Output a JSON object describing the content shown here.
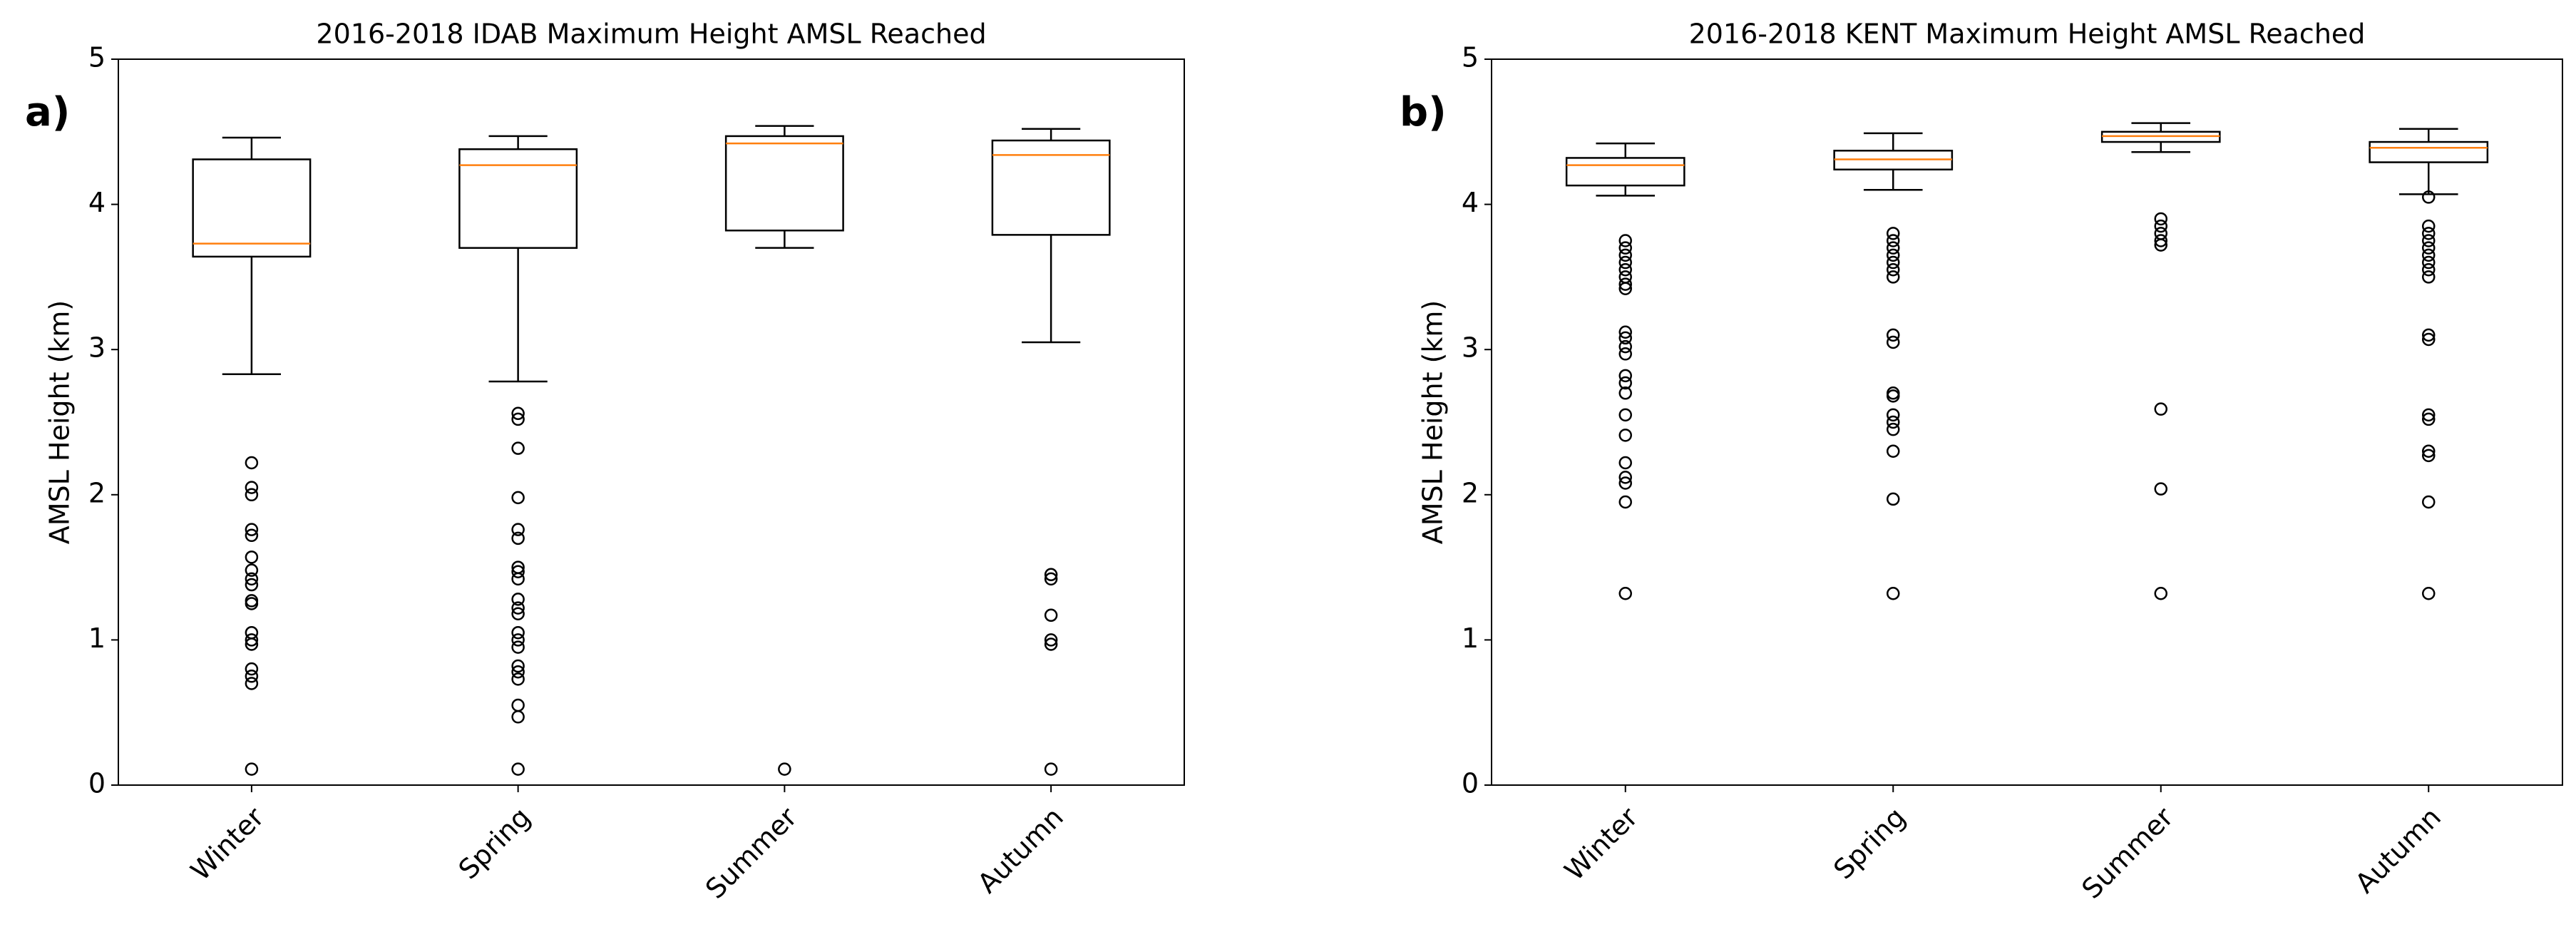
{
  "chart_data": [
    {
      "type": "box",
      "panel_label": "a)",
      "title": "2016-2018 IDAB Maximum Height AMSL Reached",
      "y_label": "AMSL Height (km)",
      "categories": [
        "Winter",
        "Spring",
        "Summer",
        "Autumn"
      ],
      "ylim": [
        0,
        5
      ],
      "yticks": [
        0,
        1,
        2,
        3,
        4,
        5
      ],
      "box_color": "#000000",
      "median_color": "#ff7f0e",
      "boxes": [
        {
          "whislo": 2.83,
          "q1": 3.64,
          "med": 3.73,
          "q3": 4.31,
          "whishi": 4.46,
          "fliers": [
            2.22,
            2.05,
            2.0,
            1.76,
            1.72,
            1.57,
            1.48,
            1.42,
            1.38,
            1.27,
            1.25,
            1.05,
            1.0,
            0.97,
            0.8,
            0.75,
            0.7,
            0.11
          ]
        },
        {
          "whislo": 2.78,
          "q1": 3.7,
          "med": 4.27,
          "q3": 4.38,
          "whishi": 4.47,
          "fliers": [
            2.56,
            2.52,
            2.32,
            1.98,
            1.76,
            1.7,
            1.5,
            1.47,
            1.42,
            1.28,
            1.22,
            1.18,
            1.05,
            1.0,
            0.95,
            0.82,
            0.78,
            0.73,
            0.55,
            0.47,
            0.11
          ]
        },
        {
          "whislo": 3.7,
          "q1": 3.82,
          "med": 4.42,
          "q3": 4.47,
          "whishi": 4.54,
          "fliers": [
            0.11
          ]
        },
        {
          "whislo": 3.05,
          "q1": 3.79,
          "med": 4.34,
          "q3": 4.44,
          "whishi": 4.52,
          "fliers": [
            1.45,
            1.42,
            1.17,
            1.0,
            0.97,
            0.11
          ]
        }
      ]
    },
    {
      "type": "box",
      "panel_label": "b)",
      "title": "2016-2018 KENT Maximum Height AMSL Reached",
      "y_label": "AMSL Height (km)",
      "categories": [
        "Winter",
        "Spring",
        "Summer",
        "Autumn"
      ],
      "ylim": [
        0,
        5
      ],
      "yticks": [
        0,
        1,
        2,
        3,
        4,
        5
      ],
      "box_color": "#000000",
      "median_color": "#ff7f0e",
      "boxes": [
        {
          "whislo": 4.06,
          "q1": 4.13,
          "med": 4.27,
          "q3": 4.32,
          "whishi": 4.42,
          "fliers": [
            3.75,
            3.7,
            3.65,
            3.6,
            3.55,
            3.5,
            3.45,
            3.42,
            3.12,
            3.08,
            3.02,
            2.97,
            2.82,
            2.77,
            2.7,
            2.55,
            2.41,
            2.22,
            2.12,
            2.08,
            1.95,
            1.32
          ]
        },
        {
          "whislo": 4.1,
          "q1": 4.24,
          "med": 4.31,
          "q3": 4.37,
          "whishi": 4.49,
          "fliers": [
            3.8,
            3.75,
            3.7,
            3.65,
            3.6,
            3.55,
            3.5,
            3.1,
            3.05,
            2.7,
            2.68,
            2.55,
            2.5,
            2.45,
            2.3,
            1.97,
            1.32
          ]
        },
        {
          "whislo": 4.36,
          "q1": 4.43,
          "med": 4.47,
          "q3": 4.5,
          "whishi": 4.56,
          "fliers": [
            3.9,
            3.85,
            3.8,
            3.75,
            3.72,
            2.59,
            2.04,
            1.32
          ]
        },
        {
          "whislo": 4.07,
          "q1": 4.29,
          "med": 4.39,
          "q3": 4.43,
          "whishi": 4.52,
          "fliers": [
            4.05,
            3.85,
            3.8,
            3.75,
            3.7,
            3.65,
            3.6,
            3.55,
            3.5,
            3.1,
            3.07,
            2.55,
            2.52,
            2.3,
            2.27,
            1.95,
            1.32
          ]
        }
      ]
    }
  ]
}
